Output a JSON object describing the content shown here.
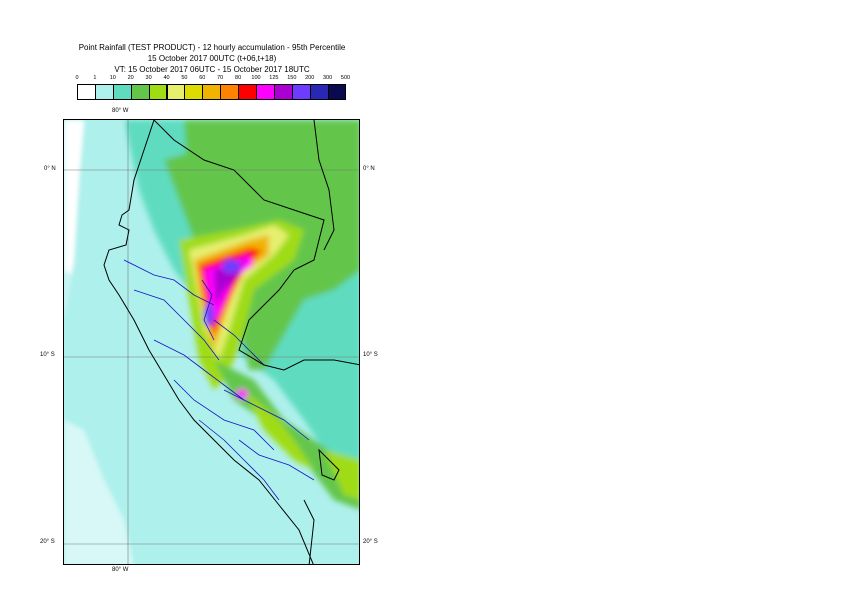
{
  "title": {
    "line1": "Point Rainfall (TEST PRODUCT) - 12 hourly accumulation - 95th Percentile",
    "line2": "15 October 2017 00UTC (t+06,t+18)",
    "line3": "VT: 15 October 2017 06UTC - 15 October 2017 18UTC"
  },
  "legend": {
    "thresholds": [
      "0",
      "1",
      "10",
      "20",
      "30",
      "40",
      "50",
      "60",
      "70",
      "80",
      "100",
      "125",
      "150",
      "200",
      "300",
      "500"
    ],
    "colors": [
      "#ffffff",
      "#aef0ec",
      "#5fdcc0",
      "#63c64b",
      "#a0dc14",
      "#e6f06e",
      "#dcdc00",
      "#f0b400",
      "#ff8200",
      "#ff0000",
      "#ff00ff",
      "#aa00d2",
      "#6e3cff",
      "#2828b4",
      "#0a0a50"
    ]
  },
  "map": {
    "lon_label_top": "80° W",
    "lon_label_bottom": "80° W",
    "lat_labels": [
      {
        "text": "0° N",
        "side": "both"
      },
      {
        "text": "10° S",
        "side": "both"
      },
      {
        "text": "20° S",
        "side": "both"
      }
    ],
    "colors": {
      "ocean_light": "#aef0ec",
      "coast_line": "#000000",
      "admin_line": "#1414c8",
      "grid_line": "#787878"
    }
  }
}
